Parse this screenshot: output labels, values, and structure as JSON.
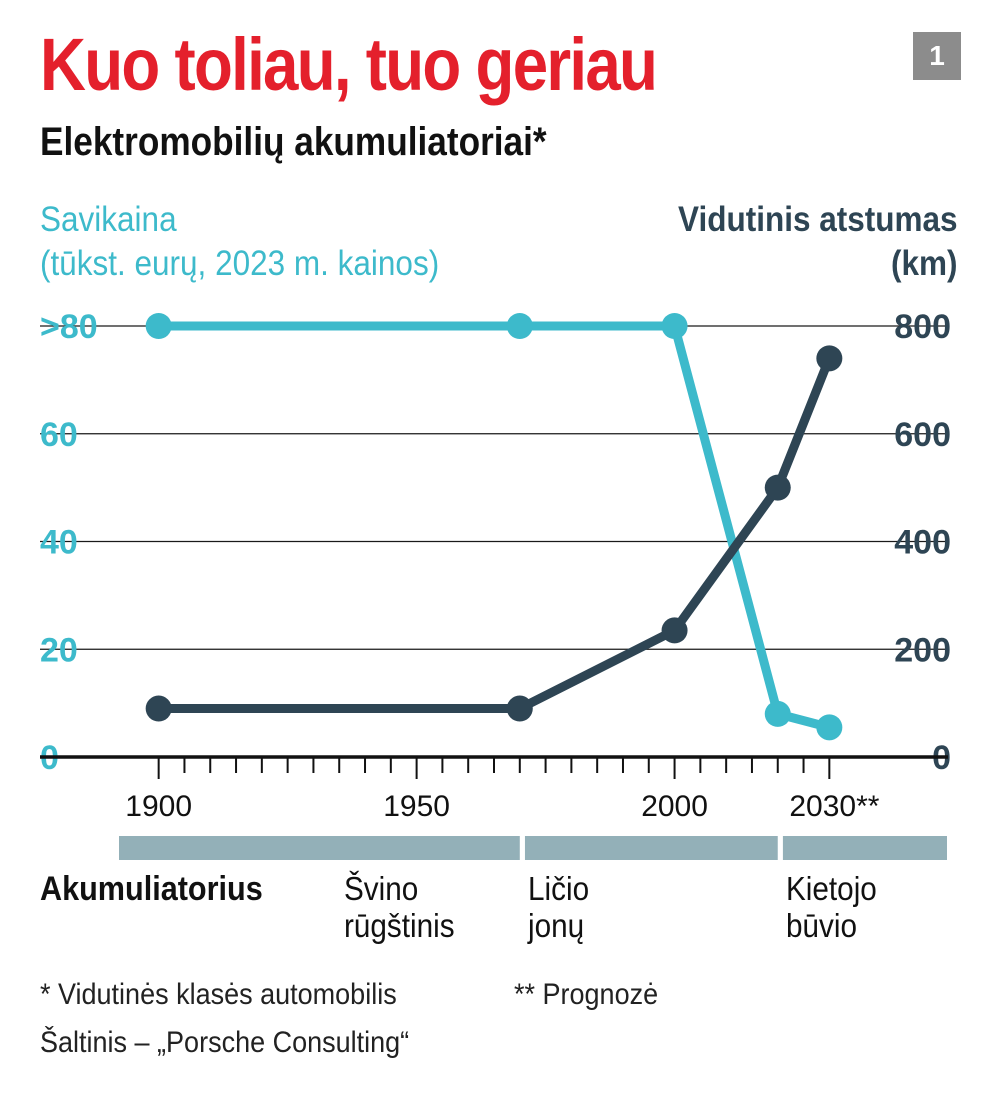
{
  "header": {
    "title": "Kuo toliau, tuo geriau",
    "subtitle": "Elektromobilių akumuliatoriai*",
    "badge": "1"
  },
  "colors": {
    "title": "#e4202c",
    "cost_series": "#3dbacb",
    "range_series": "#2e4554",
    "battery_bar": "#93b0b8"
  },
  "chart_data": {
    "type": "line",
    "left_axis": {
      "title_line1": "Savikaina",
      "title_line2": "(tūkst. eurų, 2023 m. kainos)",
      "ticks": [
        ">80",
        "60",
        "40",
        "20",
        "0"
      ],
      "range": [
        0,
        80
      ]
    },
    "right_axis": {
      "title_line1": "Vidutinis atstumas",
      "title_line2": "(km)",
      "ticks": [
        "800",
        "600",
        "400",
        "200",
        "0"
      ],
      "range": [
        0,
        800
      ]
    },
    "x_axis": {
      "range": [
        1877,
        2053
      ],
      "tick_labels": [
        {
          "value": 1900,
          "label": "1900"
        },
        {
          "value": 1950,
          "label": "1950"
        },
        {
          "value": 2000,
          "label": "2000"
        },
        {
          "value": 2030,
          "label": "2030**"
        }
      ],
      "minor_ticks": [
        1900,
        1905,
        1910,
        1915,
        1920,
        1925,
        1930,
        1935,
        1940,
        1945,
        1950,
        1955,
        1960,
        1965,
        1970,
        1975,
        1980,
        1985,
        1990,
        1995,
        2000,
        2005,
        2010,
        2015,
        2020,
        2025,
        2030
      ]
    },
    "series": [
      {
        "axis": "left",
        "points": [
          {
            "x": 1900,
            "y": 80
          },
          {
            "x": 1970,
            "y": 80
          },
          {
            "x": 2000,
            "y": 80
          },
          {
            "x": 2020,
            "y": 8
          },
          {
            "x": 2030,
            "y": 5.5
          }
        ]
      },
      {
        "axis": "right",
        "points": [
          {
            "x": 1900,
            "y": 90
          },
          {
            "x": 1970,
            "y": 90
          },
          {
            "x": 2000,
            "y": 235
          },
          {
            "x": 2020,
            "y": 500
          },
          {
            "x": 2030,
            "y": 740
          }
        ]
      }
    ],
    "grid": true
  },
  "battery": {
    "row_label": "Akumuliatorius",
    "types": [
      {
        "line1": "Švino",
        "line2": "rūgštinis",
        "from": 1890,
        "to": 1970
      },
      {
        "line1": "Ličio",
        "line2": "jonų",
        "from": 1971,
        "to": 2020
      },
      {
        "line1": "Kietojo",
        "line2": "būvio",
        "from": 2021,
        "to": 2053
      }
    ]
  },
  "footer": {
    "note1": "* Vidutinės klasės automobilis",
    "note2": "** Prognozė",
    "source": "Šaltinis – „Porsche Consulting“"
  }
}
